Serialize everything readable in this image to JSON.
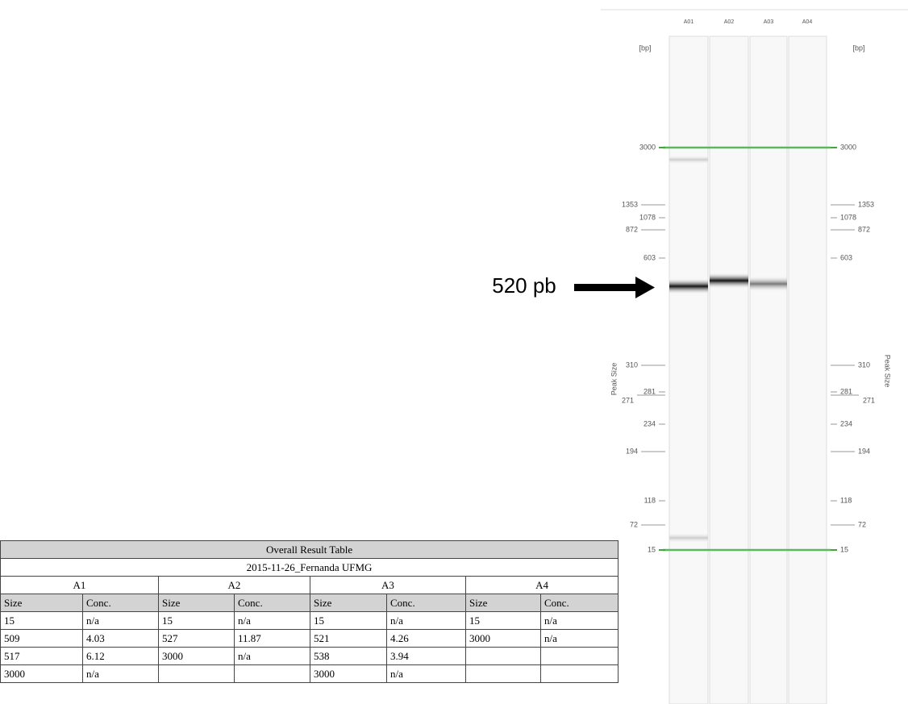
{
  "gel": {
    "lanes": [
      "A01",
      "A02",
      "A03",
      "A04"
    ],
    "unit_left": "[bp]",
    "unit_right": "[bp]",
    "axis_label_left": "Peak Size",
    "axis_label_right": "Peak Size",
    "ladder": [
      "3000",
      "1353",
      "1078",
      "872",
      "603",
      "310",
      "281",
      "271",
      "234",
      "194",
      "118",
      "72",
      "15"
    ]
  },
  "annotation": "520 pb",
  "table": {
    "title": "Overall Result Table",
    "run": "2015-11-26_Fernanda UFMG",
    "samples": [
      "A1",
      "A2",
      "A3",
      "A4"
    ],
    "columns": [
      "Size",
      "Conc.",
      "Size",
      "Conc.",
      "Size",
      "Conc.",
      "Size",
      "Conc."
    ],
    "rows": [
      [
        "15",
        "n/a",
        "15",
        "n/a",
        "15",
        "n/a",
        "15",
        "n/a"
      ],
      [
        "509",
        "4.03",
        "527",
        "11.87",
        "521",
        "4.26",
        "3000",
        "n/a"
      ],
      [
        "517",
        "6.12",
        "3000",
        "n/a",
        "538",
        "3.94",
        null,
        null
      ],
      [
        "3000",
        "n/a",
        null,
        null,
        "3000",
        "n/a",
        null,
        null
      ]
    ]
  }
}
